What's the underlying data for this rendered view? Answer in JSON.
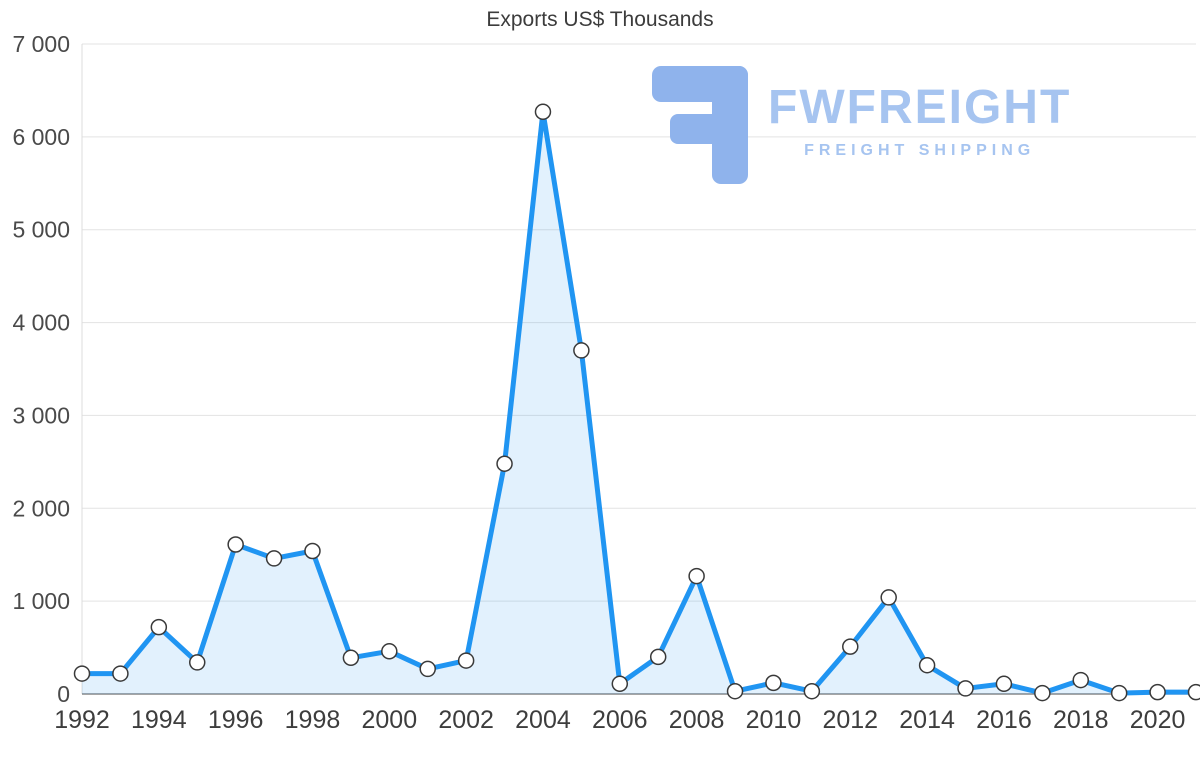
{
  "title": "Exports US$ Thousands",
  "watermark": {
    "brand": "FWFREIGHT",
    "tagline": "FREIGHT SHIPPING"
  },
  "colors": {
    "line": "#2095f2",
    "area": "rgba(33,150,243,0.13)",
    "marker_fill": "#ffffff",
    "marker_stroke": "#3a3a3a",
    "grid": "#e3e3e3",
    "axis_left": "#dcdcdc",
    "axis_bottom": "#6f6f6f",
    "y_tick_text": "#4a4a4a",
    "x_tick_text": "#3d3d3d",
    "title_text": "#3c3c3c",
    "watermark_text": "#a6c4f0",
    "watermark_icon": "#8fb3ec"
  },
  "chart_data": {
    "type": "area",
    "title": "Exports US$ Thousands",
    "xlabel": "",
    "ylabel": "",
    "x": [
      1992,
      1993,
      1994,
      1995,
      1996,
      1997,
      1998,
      1999,
      2000,
      2001,
      2002,
      2003,
      2004,
      2005,
      2006,
      2007,
      2008,
      2009,
      2010,
      2011,
      2012,
      2013,
      2014,
      2015,
      2016,
      2017,
      2018,
      2019,
      2020,
      2021
    ],
    "values": [
      220,
      220,
      720,
      340,
      1610,
      1460,
      1540,
      390,
      460,
      270,
      360,
      2480,
      6270,
      3700,
      110,
      400,
      1270,
      30,
      120,
      30,
      510,
      1040,
      310,
      60,
      110,
      10,
      150,
      10,
      20,
      20
    ],
    "ylim": [
      0,
      7000
    ],
    "y_ticks": [
      0,
      1000,
      2000,
      3000,
      4000,
      5000,
      6000,
      7000
    ],
    "y_tick_labels": [
      "0",
      "1 000",
      "2 000",
      "3 000",
      "4 000",
      "5 000",
      "6 000",
      "7 000"
    ],
    "x_tick_labels": [
      "1992",
      "1994",
      "1996",
      "1998",
      "2000",
      "2002",
      "2004",
      "2006",
      "2008",
      "2010",
      "2012",
      "2014",
      "2016",
      "2018",
      "2020"
    ],
    "grid": "horizontal",
    "legend": "none",
    "marker": "circle"
  }
}
